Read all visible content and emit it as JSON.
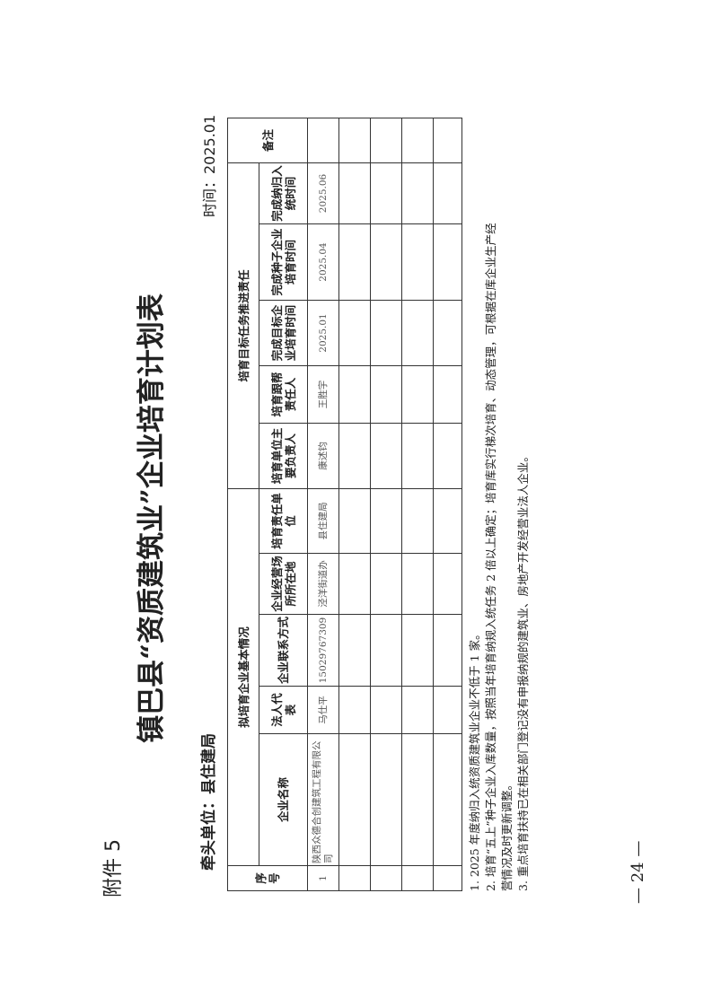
{
  "annex": "附件 5",
  "title": "镇巴县“资质建筑业”企业培育计划表",
  "lead_unit": "牵头单位：县住建局",
  "time": "时间：2025.01",
  "table": {
    "col_no": "序号",
    "group_basic": "拟培育企业基本情况",
    "group_resp": "培育目标任务推进责任",
    "col_remark": "备注",
    "headers": [
      "企业名称",
      "法人代表",
      "企业联系方式",
      "企业经营场所所在地",
      "培育责任单位",
      "培育单位主要负责人",
      "培育跟帮责任人",
      "完成目标企业培育时间",
      "完成种子企业培育时间",
      "完成纳归入统时间"
    ],
    "rows": [
      {
        "no": "1",
        "cells": [
          "陕西众德合创建筑工程有限公司",
          "马仕平",
          "15029767309",
          "泾洋街道办",
          "县住建局",
          "康述钧",
          "王胜宇",
          "2025.01",
          "2025.04",
          "2025.06"
        ],
        "remark": ""
      }
    ]
  },
  "notes": [
    "1. 2025 年度纳归入统资质建筑业企业不低于 1 家。",
    "2. 培育“五上”种子企业入库数量，按照当年培育纳规入统任务 2 倍以上确定；培育库实行梯次培育、动态管理，可根据在库企业生产经",
    "营情况及时更新调整。",
    "3. 重点培育扶持已在相关部门登记没有申报纳规的建筑业、房地产开发经营业法人企业。"
  ],
  "page_number": "— 24 —"
}
